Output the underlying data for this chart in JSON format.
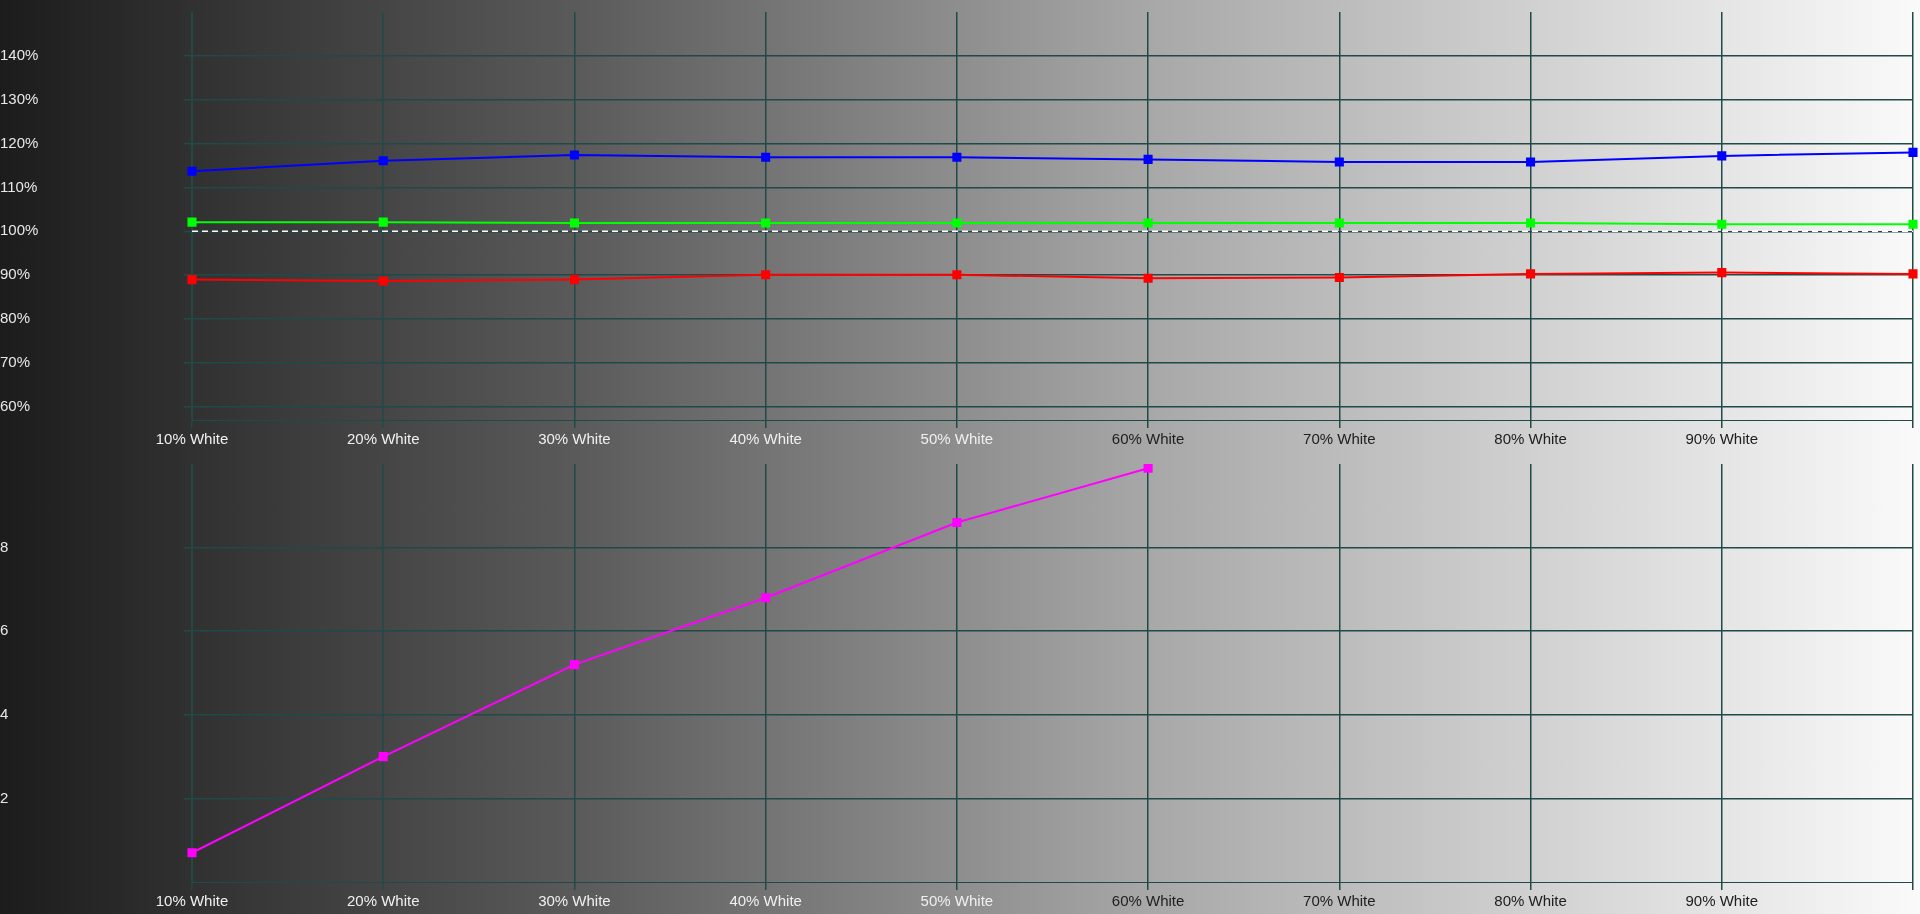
{
  "chart_data": [
    {
      "type": "line",
      "categories": [
        "10% White",
        "20% White",
        "30% White",
        "40% White",
        "50% White",
        "60% White",
        "70% White",
        "80% White",
        "90% White",
        null
      ],
      "series": [
        {
          "color": "#0000ff",
          "values": [
            113.7,
            116.1,
            117.4,
            116.9,
            116.9,
            116.4,
            115.8,
            115.8,
            117.2,
            118.0
          ]
        },
        {
          "color": "#00ff00",
          "values": [
            102.1,
            102.1,
            101.9,
            101.9,
            101.9,
            101.9,
            101.9,
            101.9,
            101.6,
            101.6
          ]
        },
        {
          "color": "#ff0000",
          "values": [
            89.0,
            88.7,
            89.0,
            90.1,
            90.1,
            89.3,
            89.5,
            90.3,
            90.6,
            90.3
          ]
        }
      ],
      "ylim": [
        57,
        150
      ],
      "yticks": [
        {
          "value": 60,
          "label": "60%"
        },
        {
          "value": 70,
          "label": "70%"
        },
        {
          "value": 80,
          "label": "80%"
        },
        {
          "value": 90,
          "label": "90%"
        },
        {
          "value": 100,
          "label": "100%"
        },
        {
          "value": 110,
          "label": "110%"
        },
        {
          "value": 120,
          "label": "120%"
        },
        {
          "value": 130,
          "label": "130%"
        },
        {
          "value": 140,
          "label": "140%"
        }
      ],
      "ref_lines": [
        {
          "axis": "y",
          "value": 100,
          "color": "#ffffff",
          "line_style": "dashed"
        }
      ],
      "grid": true,
      "legend": false,
      "marker": "square",
      "line_style": "solid"
    },
    {
      "type": "line",
      "categories": [
        "10% White",
        "20% White",
        "30% White",
        "40% White",
        "50% White",
        "60% White",
        "70% White",
        "80% White",
        "90% White",
        null
      ],
      "series": [
        {
          "color": "#ff00ff",
          "values": [
            0.7,
            3.0,
            5.2,
            6.8,
            8.6,
            9.9,
            null,
            null,
            null,
            null
          ]
        }
      ],
      "ylim": [
        0,
        10
      ],
      "yticks": [
        2,
        4,
        6,
        8
      ],
      "grid": true,
      "legend": false,
      "marker": "square",
      "line_style": "solid"
    }
  ]
}
